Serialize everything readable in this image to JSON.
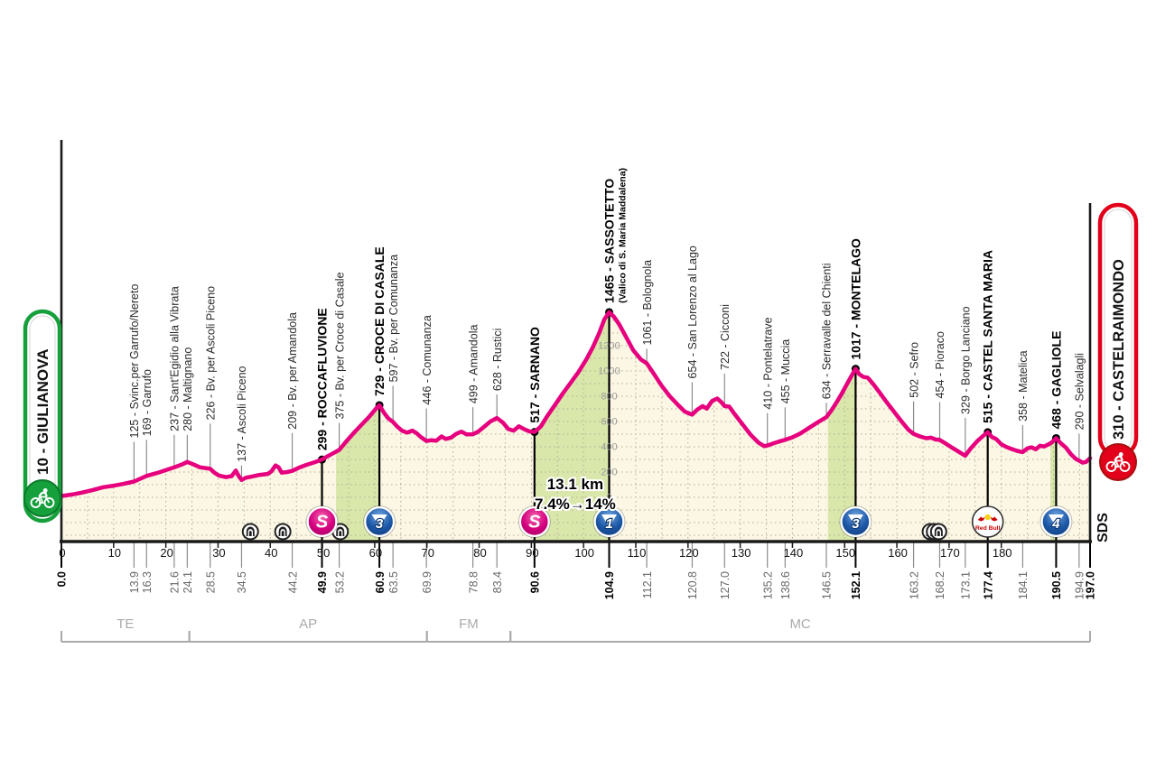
{
  "race": {
    "start": {
      "label": "10 - GIULIANOVA",
      "color": "#16a03c",
      "ring": "#0b7a2a"
    },
    "finish": {
      "label": "310 - CASTELRAIMONDO",
      "color": "#e2001a",
      "ring": "#a81010"
    },
    "logo_text": "SDS"
  },
  "chart_data": {
    "type": "area",
    "title": "",
    "xlabel": "km",
    "ylabel": "m",
    "x_range": [
      0,
      197
    ],
    "x_tick_step": 10,
    "grid": {
      "x_step_km": 5,
      "y_step_m": 100
    },
    "elevation_scale": {
      "at_km": 104.9,
      "values": [
        0,
        200,
        400,
        600,
        800,
        1000,
        1200
      ]
    },
    "climb_note": {
      "line1": "13.1 km",
      "line2": "7.4%→14%",
      "at_km": 98.4
    },
    "profile": [
      [
        0,
        10
      ],
      [
        2,
        22
      ],
      [
        4,
        38
      ],
      [
        6,
        58
      ],
      [
        8,
        80
      ],
      [
        10,
        92
      ],
      [
        12,
        108
      ],
      [
        13.9,
        125
      ],
      [
        16.3,
        169
      ],
      [
        18.5,
        195
      ],
      [
        21.6,
        237
      ],
      [
        23.2,
        262
      ],
      [
        24.1,
        280
      ],
      [
        25.2,
        262
      ],
      [
        26.5,
        238
      ],
      [
        28.5,
        226
      ],
      [
        29.3,
        195
      ],
      [
        30.2,
        172
      ],
      [
        31.5,
        160
      ],
      [
        32.6,
        168
      ],
      [
        33.4,
        212
      ],
      [
        34,
        165
      ],
      [
        34.5,
        137
      ],
      [
        35.3,
        155
      ],
      [
        36.5,
        165
      ],
      [
        38,
        178
      ],
      [
        39.5,
        185
      ],
      [
        40.2,
        205
      ],
      [
        41,
        252
      ],
      [
        41.6,
        238
      ],
      [
        42.2,
        195
      ],
      [
        43.2,
        200
      ],
      [
        44.2,
        209
      ],
      [
        45.5,
        235
      ],
      [
        47,
        258
      ],
      [
        48.5,
        278
      ],
      [
        49.9,
        299
      ],
      [
        51.2,
        330
      ],
      [
        52.2,
        352
      ],
      [
        53.2,
        375
      ],
      [
        54.5,
        440
      ],
      [
        56,
        510
      ],
      [
        57.5,
        575
      ],
      [
        59,
        640
      ],
      [
        60.2,
        700
      ],
      [
        60.9,
        729
      ],
      [
        61.8,
        668
      ],
      [
        62.6,
        625
      ],
      [
        63.5,
        597
      ],
      [
        64.3,
        560
      ],
      [
        65.2,
        528
      ],
      [
        66.2,
        512
      ],
      [
        67.2,
        528
      ],
      [
        68,
        508
      ],
      [
        68.8,
        478
      ],
      [
        69.9,
        446
      ],
      [
        70.8,
        452
      ],
      [
        71.8,
        448
      ],
      [
        72.8,
        482
      ],
      [
        73.6,
        462
      ],
      [
        74.6,
        472
      ],
      [
        75.6,
        502
      ],
      [
        76.6,
        520
      ],
      [
        77.6,
        498
      ],
      [
        78.8,
        499
      ],
      [
        79.8,
        520
      ],
      [
        81,
        560
      ],
      [
        82.2,
        602
      ],
      [
        83.4,
        628
      ],
      [
        84.6,
        590
      ],
      [
        85.6,
        540
      ],
      [
        86.6,
        528
      ],
      [
        87.6,
        562
      ],
      [
        88.6,
        540
      ],
      [
        89.6,
        522
      ],
      [
        90.6,
        517
      ],
      [
        91.8,
        560
      ],
      [
        93,
        640
      ],
      [
        94.5,
        730
      ],
      [
        96,
        820
      ],
      [
        97.5,
        905
      ],
      [
        99,
        990
      ],
      [
        100.5,
        1090
      ],
      [
        101.8,
        1190
      ],
      [
        103,
        1300
      ],
      [
        104,
        1410
      ],
      [
        104.9,
        1465
      ],
      [
        105.8,
        1430
      ],
      [
        106.8,
        1370
      ],
      [
        108,
        1280
      ],
      [
        109.5,
        1165
      ],
      [
        111,
        1090
      ],
      [
        112.1,
        1061
      ],
      [
        113.5,
        975
      ],
      [
        115,
        880
      ],
      [
        116.5,
        800
      ],
      [
        118,
        735
      ],
      [
        119.4,
        678
      ],
      [
        120.8,
        654
      ],
      [
        121.8,
        695
      ],
      [
        122.8,
        722
      ],
      [
        123.6,
        702
      ],
      [
        124.6,
        762
      ],
      [
        125.6,
        782
      ],
      [
        126.4,
        752
      ],
      [
        127,
        722
      ],
      [
        127.9,
        718
      ],
      [
        129,
        655
      ],
      [
        130.5,
        575
      ],
      [
        132,
        495
      ],
      [
        133.5,
        432
      ],
      [
        134.6,
        405
      ],
      [
        135.2,
        410
      ],
      [
        136.4,
        428
      ],
      [
        137.5,
        442
      ],
      [
        138.6,
        455
      ],
      [
        140,
        475
      ],
      [
        141.5,
        505
      ],
      [
        143,
        545
      ],
      [
        144.5,
        585
      ],
      [
        146.5,
        634
      ],
      [
        147.5,
        690
      ],
      [
        148.5,
        755
      ],
      [
        149.5,
        825
      ],
      [
        150.5,
        900
      ],
      [
        151.4,
        968
      ],
      [
        152.1,
        1017
      ],
      [
        152.8,
        975
      ],
      [
        153.6,
        952
      ],
      [
        154.4,
        948
      ],
      [
        155.4,
        900
      ],
      [
        156.6,
        835
      ],
      [
        158,
        755
      ],
      [
        159.5,
        675
      ],
      [
        161,
        595
      ],
      [
        162.2,
        535
      ],
      [
        163.2,
        502
      ],
      [
        164.4,
        482
      ],
      [
        165.6,
        468
      ],
      [
        166.6,
        472
      ],
      [
        167.4,
        458
      ],
      [
        168.2,
        454
      ],
      [
        169.4,
        424
      ],
      [
        170.6,
        392
      ],
      [
        171.8,
        362
      ],
      [
        173.1,
        329
      ],
      [
        174.2,
        390
      ],
      [
        175.4,
        445
      ],
      [
        176.4,
        482
      ],
      [
        177.4,
        515
      ],
      [
        178.2,
        478
      ],
      [
        179,
        462
      ],
      [
        180,
        420
      ],
      [
        181,
        398
      ],
      [
        182,
        382
      ],
      [
        183,
        368
      ],
      [
        184.1,
        358
      ],
      [
        185,
        388
      ],
      [
        185.8,
        396
      ],
      [
        186.6,
        380
      ],
      [
        187.4,
        408
      ],
      [
        188.2,
        402
      ],
      [
        189,
        418
      ],
      [
        189.6,
        432
      ],
      [
        190.5,
        468
      ],
      [
        191.4,
        428
      ],
      [
        192.4,
        392
      ],
      [
        193.4,
        338
      ],
      [
        194.4,
        300
      ],
      [
        194.9,
        290
      ],
      [
        195.6,
        274
      ],
      [
        196.2,
        280
      ],
      [
        197,
        310
      ]
    ],
    "waypoints": [
      {
        "km": 0.0,
        "alt": 10,
        "name": "",
        "bold": true,
        "axis": "start"
      },
      {
        "km": 13.9,
        "alt": 125,
        "name": "125 - Svinc.per Garrufo/Nereto",
        "drop": 44
      },
      {
        "km": 16.3,
        "alt": 169,
        "name": "169 - Garrufo",
        "drop": 40
      },
      {
        "km": 21.6,
        "alt": 237,
        "name": "237 - Sant'Egidio alla Vibrata",
        "drop": 36
      },
      {
        "km": 24.1,
        "alt": 280,
        "name": "280 - Maltignano",
        "drop": 30
      },
      {
        "km": 28.5,
        "alt": 226,
        "name": "226 - Bv. per Ascoli Piceno",
        "drop": 50
      },
      {
        "km": 34.5,
        "alt": 137,
        "name": "137 - Ascoli Piceno",
        "drop": 16
      },
      {
        "km": 44.2,
        "alt": 209,
        "name": "209 - Bv. per Amandola",
        "drop": 42
      },
      {
        "km": 49.9,
        "alt": 299,
        "name": "299 - ROCCAFLUVIONE",
        "bold": true,
        "marker": "sprint"
      },
      {
        "km": 53.2,
        "alt": 375,
        "name": "375 - Bv. per Croce di Casale",
        "drop": 30
      },
      {
        "km": 60.9,
        "alt": 729,
        "name": "729 - CROCE DI CASALE",
        "bold": true,
        "marker": "cat3"
      },
      {
        "km": 63.5,
        "alt": 597,
        "name": "597 - Bv. per Comunanza",
        "drop": 40
      },
      {
        "km": 69.9,
        "alt": 446,
        "name": "446 - Comunanza",
        "drop": 36
      },
      {
        "km": 78.8,
        "alt": 499,
        "name": "499 - Amandola",
        "drop": 30
      },
      {
        "km": 83.4,
        "alt": 628,
        "name": "628 - Rustici",
        "drop": 26
      },
      {
        "km": 90.6,
        "alt": 517,
        "name": "517 - SARNANO",
        "bold": true,
        "marker": "sprint"
      },
      {
        "km": 104.9,
        "alt": 1465,
        "name": "1465 - SASSOTETTO",
        "sub": "(Valico di S. Maria Maddalena)",
        "bold": true,
        "marker": "cat1"
      },
      {
        "km": 112.1,
        "alt": 1061,
        "name": "1061 - Bolognola",
        "drop": 16
      },
      {
        "km": 120.8,
        "alt": 654,
        "name": "654 - San Lorenzo al Lago",
        "drop": 36
      },
      {
        "km": 127.0,
        "alt": 722,
        "name": "722 - Cicconi",
        "drop": 36
      },
      {
        "km": 135.2,
        "alt": 410,
        "name": "410 - Pontelatrave",
        "drop": 36
      },
      {
        "km": 138.6,
        "alt": 455,
        "name": "455 - Muccia",
        "drop": 36
      },
      {
        "km": 146.5,
        "alt": 634,
        "name": "634 - Serravalle del Chienti",
        "drop": 16
      },
      {
        "km": 152.1,
        "alt": 1017,
        "name": "1017 - MONTELAGO",
        "bold": true,
        "marker": "cat3"
      },
      {
        "km": 163.2,
        "alt": 502,
        "name": "502 - Sefro",
        "drop": 36
      },
      {
        "km": 168.2,
        "alt": 454,
        "name": "454 - Pioraco",
        "drop": 42
      },
      {
        "km": 173.1,
        "alt": 329,
        "name": "329 - Borgo Lanciano",
        "drop": 42
      },
      {
        "km": 177.4,
        "alt": 515,
        "name": "515 - CASTEL SANTA MARIA",
        "bold": true,
        "marker": "redbull"
      },
      {
        "km": 184.1,
        "alt": 358,
        "name": "358 - Matelica",
        "drop": 30
      },
      {
        "km": 190.5,
        "alt": 468,
        "name": "468 - GAGLIOLE",
        "bold": true,
        "marker": "cat4"
      },
      {
        "km": 194.9,
        "alt": 290,
        "name": "290 - Selvalagli",
        "drop": 30
      },
      {
        "km": 197.0,
        "alt": 310,
        "name": "",
        "bold": true,
        "axis": "finish"
      }
    ],
    "green_sections": [
      [
        52.6,
        60.9
      ],
      [
        90.6,
        104.9
      ],
      [
        146.8,
        152.1
      ],
      [
        189.4,
        190.5
      ]
    ],
    "tunnels_km": [
      36.2,
      42.4,
      53.4,
      166.4,
      167.2,
      168.0
    ],
    "provinces": [
      {
        "label": "TE",
        "from_km": 0,
        "to_km": 24.5
      },
      {
        "label": "AP",
        "from_km": 24.5,
        "to_km": 70.0
      },
      {
        "label": "FM",
        "from_km": 70.0,
        "to_km": 86.0
      },
      {
        "label": "MC",
        "from_km": 86.0,
        "to_km": 197.0
      }
    ],
    "redbull_label": "Red Bull",
    "colors": {
      "profile": "#e6007e",
      "area_fill": "#fbf7e4",
      "climb_fill": "#d9e7ab",
      "grid_dots": "#b3ad95",
      "axis": "#1a1a1a",
      "waypoint_line": "#8c8c8c",
      "label": "#2b2b2b",
      "label_bold": "#000000",
      "km_label": "#666666",
      "scale_label": "#9a9a9a",
      "province": "#aaaaaa",
      "sprint_pink": "#d4007e",
      "category_blue": "#1c57a8",
      "category_dark": "#123c77",
      "redbull_red": "#cc0000"
    }
  }
}
